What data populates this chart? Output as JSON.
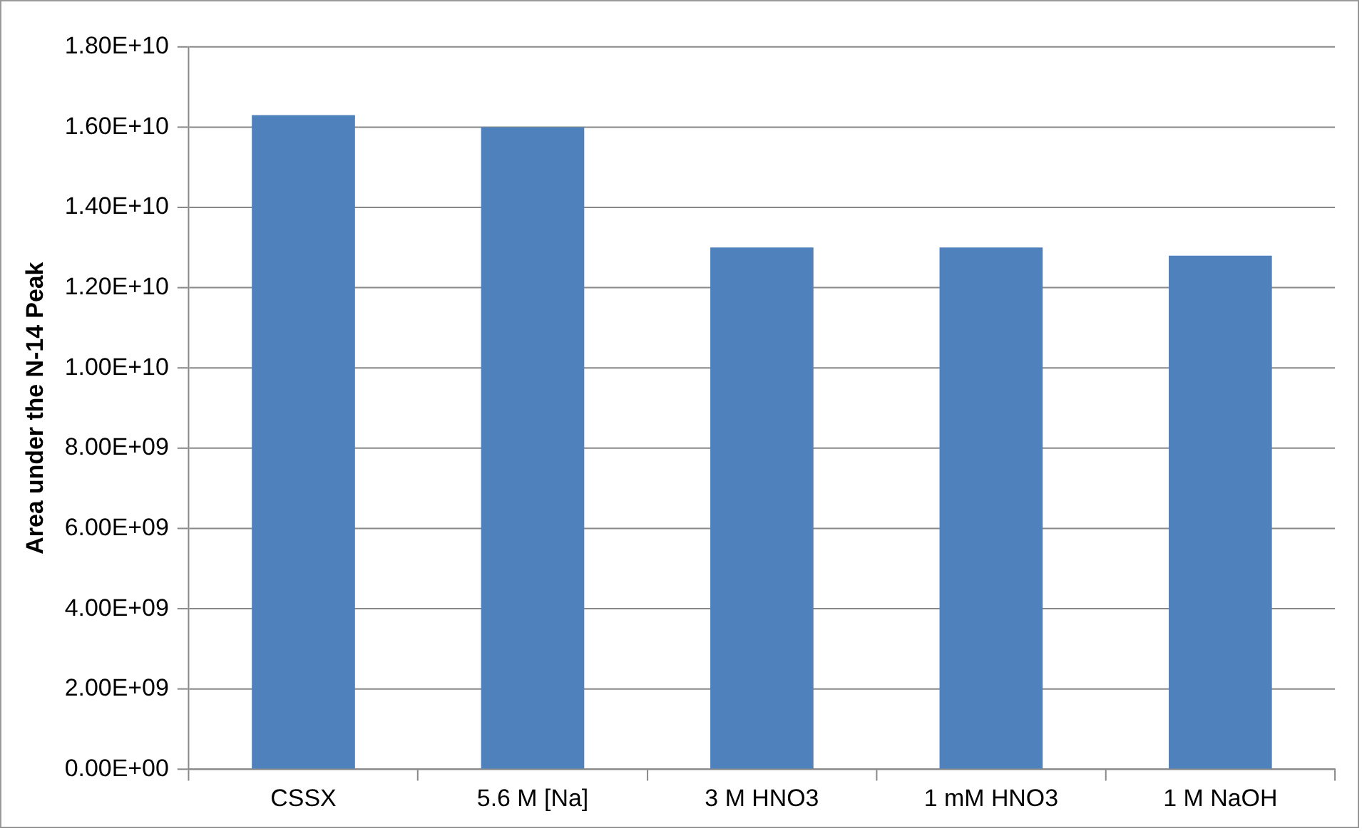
{
  "chart_data": {
    "type": "bar",
    "ylabel": "Area under the N-14 Peak",
    "categories": [
      "CSSX",
      "5.6 M [Na]",
      "3 M HNO3",
      "1 mM HNO3",
      "1 M NaOH"
    ],
    "values": [
      16300000000,
      16000000000,
      13000000000,
      13000000000,
      12800000000
    ],
    "color": "#4f81bd",
    "ylim": [
      0,
      18000000000
    ],
    "yticks": [
      {
        "value": 0,
        "label": "0.00E+00"
      },
      {
        "value": 2000000000,
        "label": "2.00E+09"
      },
      {
        "value": 4000000000,
        "label": "4.00E+09"
      },
      {
        "value": 6000000000,
        "label": "6.00E+09"
      },
      {
        "value": 8000000000,
        "label": "8.00E+09"
      },
      {
        "value": 10000000000,
        "label": "1.00E+10"
      },
      {
        "value": 12000000000,
        "label": "1.20E+10"
      },
      {
        "value": 14000000000,
        "label": "1.40E+10"
      },
      {
        "value": 16000000000,
        "label": "1.60E+10"
      },
      {
        "value": 18000000000,
        "label": "1.80E+10"
      }
    ],
    "grid": "y",
    "legend": false
  }
}
